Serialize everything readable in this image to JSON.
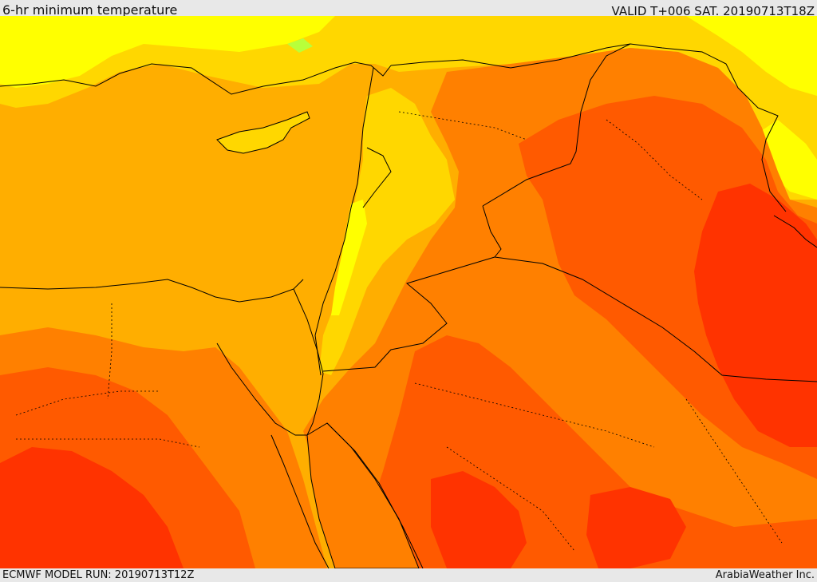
{
  "header": {
    "title": "6-hr minimum temperature",
    "valid": "VALID T+006 SAT. 20190713T18Z"
  },
  "footer": {
    "model_run": "ECMWF MODEL RUN: 20190713T12Z",
    "credit": "ArabiaWeather Inc."
  },
  "map": {
    "region": "Eastern Mediterranean and Middle East",
    "field": "6-hr minimum temperature",
    "colors": {
      "yellow": "#ffff00",
      "light_yellow_orange": "#ffd700",
      "orange_light": "#ffae00",
      "orange": "#ff8000",
      "orange_red": "#ff5a00",
      "red": "#ff3300",
      "green_tint": "#b8ff3a",
      "border": "#000000"
    }
  }
}
